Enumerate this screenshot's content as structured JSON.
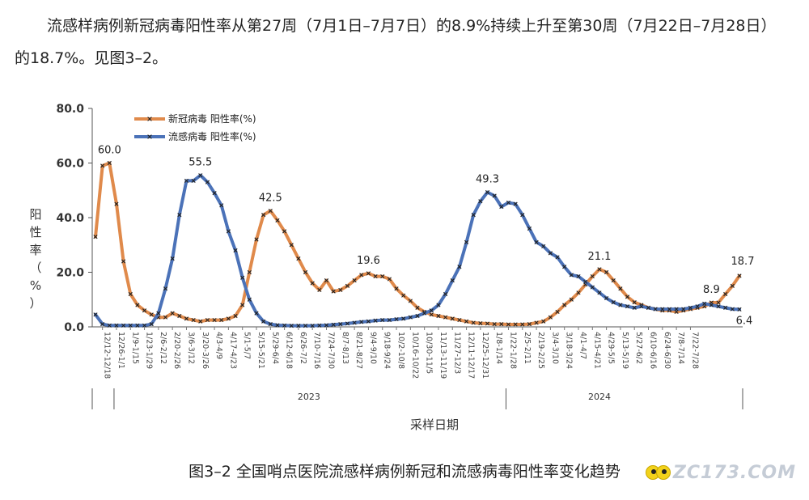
{
  "paragraph": "流感样病例新冠病毒阳性率从第27周（7月1日–7月7日）的8.9%持续上升至第30周（7月22日–7月28日）的18.7%。见图3–2。",
  "caption": "图3–2 全国哨点医院流感样病例新冠和流感病毒阳性率变化趋势",
  "watermark": "ZC173.COM",
  "chart_data": {
    "type": "line",
    "xlabel": "采样日期",
    "ylabel": "阳性率（%）",
    "ylim": [
      0,
      80
    ],
    "yticks": [
      "0.0",
      "20.0",
      "40.0",
      "60.0",
      "80.0"
    ],
    "legend_position": "top-left",
    "grid": false,
    "years": [
      {
        "label": "2023",
        "from_index": 3,
        "to_index": 58
      },
      {
        "label": "2024",
        "from_index": 59,
        "to_index": 85
      }
    ],
    "tick_labels": [
      "12/12-12/18",
      "12/26-1/1",
      "1/9-1/15",
      "1/23-1/29",
      "2/6-2/12",
      "2/20-2/26",
      "3/6-3/12",
      "3/20-3/26",
      "4/3-4/9",
      "4/17-4/23",
      "5/1-5/7",
      "5/15-5/21",
      "5/29-6/4",
      "6/12-6/18",
      "6/26-7/2",
      "7/10-7/16",
      "7/24-7/30",
      "8/7-8/13",
      "8/21-8/27",
      "9/4-9/10",
      "9/18-9/24",
      "10/2-10/8",
      "10/16-10/22",
      "10/30-11/5",
      "11/13-11/19",
      "11/27-12/3",
      "12/11-12/17",
      "12/25-12/31",
      "1/8-1/14",
      "1/22-1/28",
      "2/5-2/11",
      "2/19-2/25",
      "3/4-3/10",
      "3/18-3/24",
      "4/1-4/7",
      "4/15-4/21",
      "4/29-5/5",
      "5/13-5/19",
      "5/27-6/2",
      "6/10-6/16",
      "6/24-6/30",
      "7/8-7/14",
      "7/22-7/28"
    ],
    "series": [
      {
        "name": "新冠病毒 阳性率(%)",
        "color": "#e08a4b",
        "values": [
          33.0,
          59.0,
          60.0,
          45.0,
          24.0,
          12.0,
          8.0,
          6.0,
          4.5,
          3.5,
          3.5,
          5.0,
          4.0,
          3.0,
          2.5,
          2.0,
          2.5,
          2.5,
          2.5,
          3.0,
          4.0,
          8.0,
          20.0,
          32.0,
          41.0,
          42.5,
          39.0,
          35.0,
          30.0,
          25.0,
          20.0,
          16.0,
          13.5,
          17.0,
          13.0,
          13.5,
          15.0,
          17.0,
          19.0,
          19.6,
          18.5,
          18.5,
          17.5,
          14.0,
          11.5,
          9.5,
          7.0,
          5.5,
          4.5,
          4.0,
          3.5,
          3.0,
          2.5,
          2.0,
          1.5,
          1.3,
          1.2,
          1.0,
          1.0,
          0.9,
          0.9,
          0.9,
          1.0,
          1.5,
          2.0,
          3.5,
          5.5,
          8.0,
          10.0,
          12.5,
          15.5,
          18.5,
          21.1,
          20.0,
          17.0,
          14.0,
          11.0,
          9.0,
          8.0,
          7.0,
          6.5,
          6.0,
          6.0,
          5.5,
          6.0,
          6.5,
          7.0,
          7.5,
          8.9,
          8.9,
          12.0,
          15.0,
          18.7
        ],
        "labels": [
          {
            "index": 2,
            "text": "60.0"
          },
          {
            "index": 25,
            "text": "42.5"
          },
          {
            "index": 39,
            "text": "19.6"
          },
          {
            "index": 72,
            "text": "21.1"
          },
          {
            "index": 88,
            "text": "8.9"
          },
          {
            "index": 92,
            "text": "18.7"
          }
        ]
      },
      {
        "name": "流感病毒 阳性率(%)",
        "color": "#4b72b8",
        "values": [
          4.5,
          1.0,
          0.5,
          0.5,
          0.5,
          0.5,
          0.5,
          0.5,
          1.0,
          5.0,
          14.0,
          25.0,
          41.0,
          53.5,
          53.5,
          55.5,
          53.0,
          49.0,
          44.5,
          35.0,
          28.0,
          18.0,
          10.0,
          5.0,
          2.0,
          1.0,
          0.6,
          0.5,
          0.4,
          0.4,
          0.4,
          0.4,
          0.5,
          0.6,
          0.8,
          1.0,
          1.2,
          1.5,
          1.8,
          2.0,
          2.3,
          2.5,
          2.5,
          2.8,
          3.0,
          3.5,
          4.0,
          5.0,
          6.0,
          8.0,
          12.0,
          17.0,
          22.0,
          31.0,
          41.0,
          46.0,
          49.3,
          48.0,
          44.0,
          45.5,
          45.0,
          41.0,
          36.0,
          31.0,
          29.5,
          27.0,
          25.5,
          22.0,
          19.0,
          18.5,
          16.5,
          14.5,
          12.5,
          10.5,
          9.0,
          8.0,
          7.5,
          7.0,
          7.5,
          7.0,
          6.5,
          6.5,
          6.5,
          6.5,
          6.5,
          7.0,
          7.5,
          8.5,
          8.0,
          7.5,
          7.0,
          6.5,
          6.4
        ],
        "labels": [
          {
            "index": 15,
            "text": "55.5"
          },
          {
            "index": 56,
            "text": "49.3"
          },
          {
            "index": 92,
            "text": "6.4"
          }
        ]
      }
    ]
  }
}
